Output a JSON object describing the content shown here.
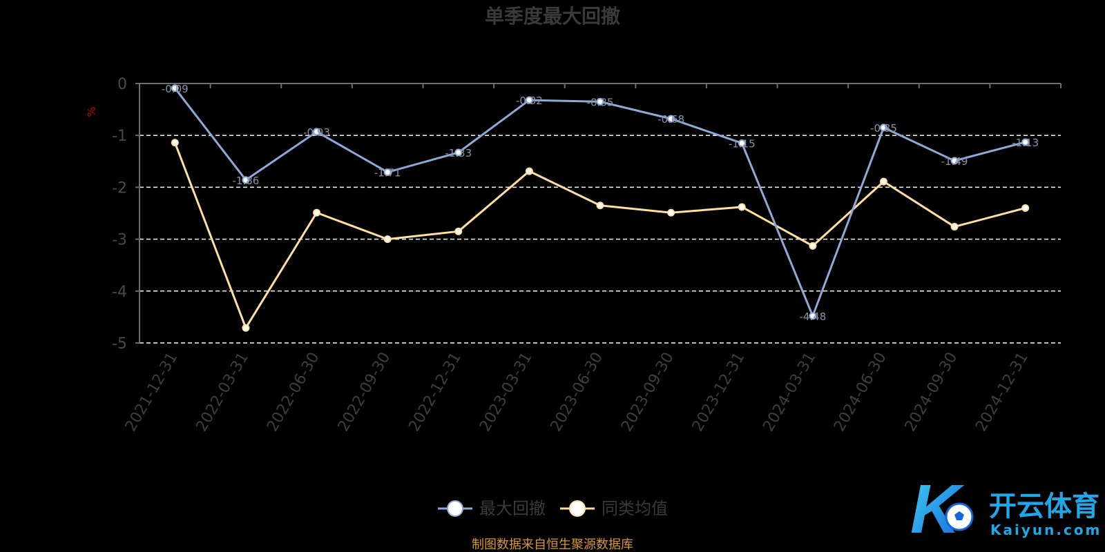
{
  "chart_data": {
    "type": "line",
    "title": "单季度最大回撤",
    "unit": "%",
    "categories": [
      "2021-12-31",
      "2022-03-31",
      "2022-06-30",
      "2022-09-30",
      "2022-12-31",
      "2023-03-31",
      "2023-06-30",
      "2023-09-30",
      "2023-12-31",
      "2024-03-31",
      "2024-06-30",
      "2024-09-30",
      "2024-12-31"
    ],
    "ylim": [
      -5,
      0
    ],
    "yticks": [
      0,
      -1,
      -2,
      -3,
      -4,
      -5
    ],
    "grid": true,
    "legend_position": "bottom-center",
    "series": [
      {
        "name": "最大回撤",
        "color": "#8eaad8",
        "values": [
          -0.09,
          -1.86,
          -0.93,
          -1.71,
          -1.33,
          -0.32,
          -0.35,
          -0.68,
          -1.15,
          -4.48,
          -0.85,
          -1.49,
          -1.13
        ]
      },
      {
        "name": "同类均值",
        "color": "#ffe0a0",
        "values": [
          -1.14,
          -4.71,
          -2.49,
          -3.0,
          -2.85,
          -1.69,
          -2.35,
          -2.49,
          -2.38,
          -3.13,
          -1.89,
          -2.76,
          -2.4
        ]
      }
    ],
    "point_labels": [
      "-0.09",
      "-1.86",
      "-0.93",
      "-1.71",
      "-1.33",
      "-0.32",
      "-0.35",
      "-0.68",
      "-1.15",
      "-4.48",
      "-0.85",
      "-1.49",
      "-1.13"
    ]
  },
  "footer": {
    "source_note": "制图数据来自恒生聚源数据库"
  },
  "watermark": {
    "brand_cn": "开云体育",
    "brand_en": "Kaiyun.com",
    "logo_letter": "K"
  },
  "colors": {
    "background": "#000000",
    "axis": "#6e6e6e",
    "grid": "#ffffff",
    "brand_blue": "#1ea8e8"
  }
}
